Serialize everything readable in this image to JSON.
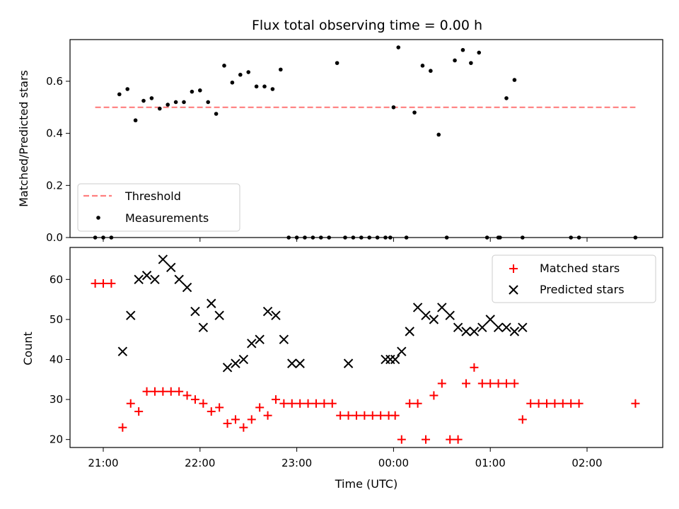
{
  "chart_data": [
    {
      "type": "scatter",
      "title": "Flux total observing time = 0.00 h",
      "xlabel": "",
      "ylabel": "Matched/Predicted stars",
      "ylim": [
        0.0,
        0.76
      ],
      "yticks": [
        "0.0",
        "0.2",
        "0.4",
        "0.6"
      ],
      "grid": false,
      "legend_position": "lower-left",
      "series": [
        {
          "name": "Threshold",
          "style": "dashed-line",
          "color": "#ff7f7f",
          "x": [
            "20:55",
            "02:30"
          ],
          "y": [
            0.5,
            0.5
          ]
        },
        {
          "name": "Measurements",
          "style": "dots",
          "color": "#000000",
          "x": [
            "20:55",
            "21:00",
            "21:05",
            "21:10",
            "21:15",
            "21:20",
            "21:25",
            "21:30",
            "21:35",
            "21:40",
            "21:45",
            "21:50",
            "21:55",
            "22:00",
            "22:05",
            "22:10",
            "22:15",
            "22:20",
            "22:25",
            "22:30",
            "22:35",
            "22:40",
            "22:45",
            "22:50",
            "22:55",
            "23:00",
            "23:05",
            "23:10",
            "23:15",
            "23:20",
            "23:25",
            "23:30",
            "23:35",
            "23:40",
            "23:45",
            "23:50",
            "23:55",
            "23:58",
            "00:00",
            "00:03",
            "00:08",
            "00:13",
            "00:18",
            "00:23",
            "00:28",
            "00:33",
            "00:38",
            "00:43",
            "00:48",
            "00:53",
            "00:58",
            "01:05",
            "01:06",
            "01:10",
            "01:15",
            "01:20",
            "01:50",
            "01:55",
            "02:30"
          ],
          "y": [
            0.0,
            0.0,
            0.0,
            0.55,
            0.57,
            0.45,
            0.525,
            0.535,
            0.495,
            0.51,
            0.52,
            0.52,
            0.56,
            0.565,
            0.52,
            0.475,
            0.66,
            0.595,
            0.625,
            0.635,
            0.58,
            0.58,
            0.57,
            0.645,
            0.0,
            0.0,
            0.0,
            0.0,
            0.0,
            0.0,
            0.67,
            0.0,
            0.0,
            0.0,
            0.0,
            0.0,
            0.0,
            0.0,
            0.5,
            0.73,
            0.0,
            0.48,
            0.66,
            0.64,
            0.395,
            0.0,
            0.68,
            0.72,
            0.67,
            0.71,
            0.0,
            0.0,
            0.0,
            0.535,
            0.605,
            0.0,
            0.0,
            0.0,
            0.0
          ]
        }
      ]
    },
    {
      "type": "scatter",
      "title": "",
      "xlabel": "Time (UTC)",
      "ylabel": "Count",
      "ylim": [
        18,
        68
      ],
      "yticks": [
        "20",
        "30",
        "40",
        "50",
        "60"
      ],
      "x_ticks": [
        "21:00",
        "22:00",
        "23:00",
        "00:00",
        "01:00",
        "02:00"
      ],
      "grid": false,
      "legend_position": "upper-right",
      "series": [
        {
          "name": "Matched stars",
          "marker": "+",
          "color": "#ff0000",
          "x": [
            "20:55",
            "21:00",
            "21:05",
            "21:12",
            "21:17",
            "21:22",
            "21:27",
            "21:32",
            "21:37",
            "21:42",
            "21:47",
            "21:52",
            "21:57",
            "22:02",
            "22:07",
            "22:12",
            "22:17",
            "22:22",
            "22:27",
            "22:32",
            "22:37",
            "22:42",
            "22:47",
            "22:52",
            "22:57",
            "23:02",
            "23:07",
            "23:12",
            "23:17",
            "23:22",
            "23:27",
            "23:32",
            "23:37",
            "23:42",
            "23:47",
            "23:52",
            "23:57",
            "00:01",
            "00:05",
            "00:10",
            "00:15",
            "00:20",
            "00:25",
            "00:30",
            "00:35",
            "00:40",
            "00:45",
            "00:50",
            "00:55",
            "01:00",
            "01:05",
            "01:10",
            "01:15",
            "01:20",
            "01:25",
            "01:30",
            "01:35",
            "01:40",
            "01:45",
            "01:50",
            "01:55",
            "02:30"
          ],
          "y": [
            59,
            59,
            59,
            23,
            29,
            27,
            32,
            32,
            32,
            32,
            32,
            31,
            30,
            29,
            27,
            28,
            24,
            25,
            23,
            25,
            28,
            26,
            30,
            29,
            29,
            29,
            29,
            29,
            29,
            29,
            26,
            26,
            26,
            26,
            26,
            26,
            26,
            26,
            20,
            29,
            29,
            20,
            31,
            34,
            20,
            20,
            34,
            38,
            34,
            34,
            34,
            34,
            34,
            25,
            29,
            29,
            29,
            29,
            29,
            29,
            29,
            29
          ]
        },
        {
          "name": "Predicted stars",
          "marker": "x",
          "color": "#000000",
          "x": [
            "21:12",
            "21:17",
            "21:22",
            "21:27",
            "21:32",
            "21:37",
            "21:42",
            "21:47",
            "21:52",
            "21:57",
            "22:02",
            "22:07",
            "22:12",
            "22:17",
            "22:22",
            "22:27",
            "22:32",
            "22:37",
            "22:42",
            "22:47",
            "22:52",
            "22:57",
            "23:02",
            "23:32",
            "23:55",
            "23:58",
            "00:01",
            "00:05",
            "00:10",
            "00:15",
            "00:20",
            "00:25",
            "00:30",
            "00:35",
            "00:40",
            "00:45",
            "00:50",
            "00:55",
            "01:00",
            "01:05",
            "01:10",
            "01:15",
            "01:20"
          ],
          "y": [
            42,
            51,
            60,
            61,
            60,
            65,
            63,
            60,
            58,
            52,
            48,
            54,
            51,
            38,
            39,
            40,
            44,
            45,
            52,
            51,
            45,
            39,
            39,
            39,
            40,
            40,
            40,
            42,
            47,
            53,
            51,
            50,
            53,
            51,
            48,
            47,
            47,
            48,
            50,
            48,
            48,
            47,
            48
          ]
        }
      ]
    }
  ]
}
